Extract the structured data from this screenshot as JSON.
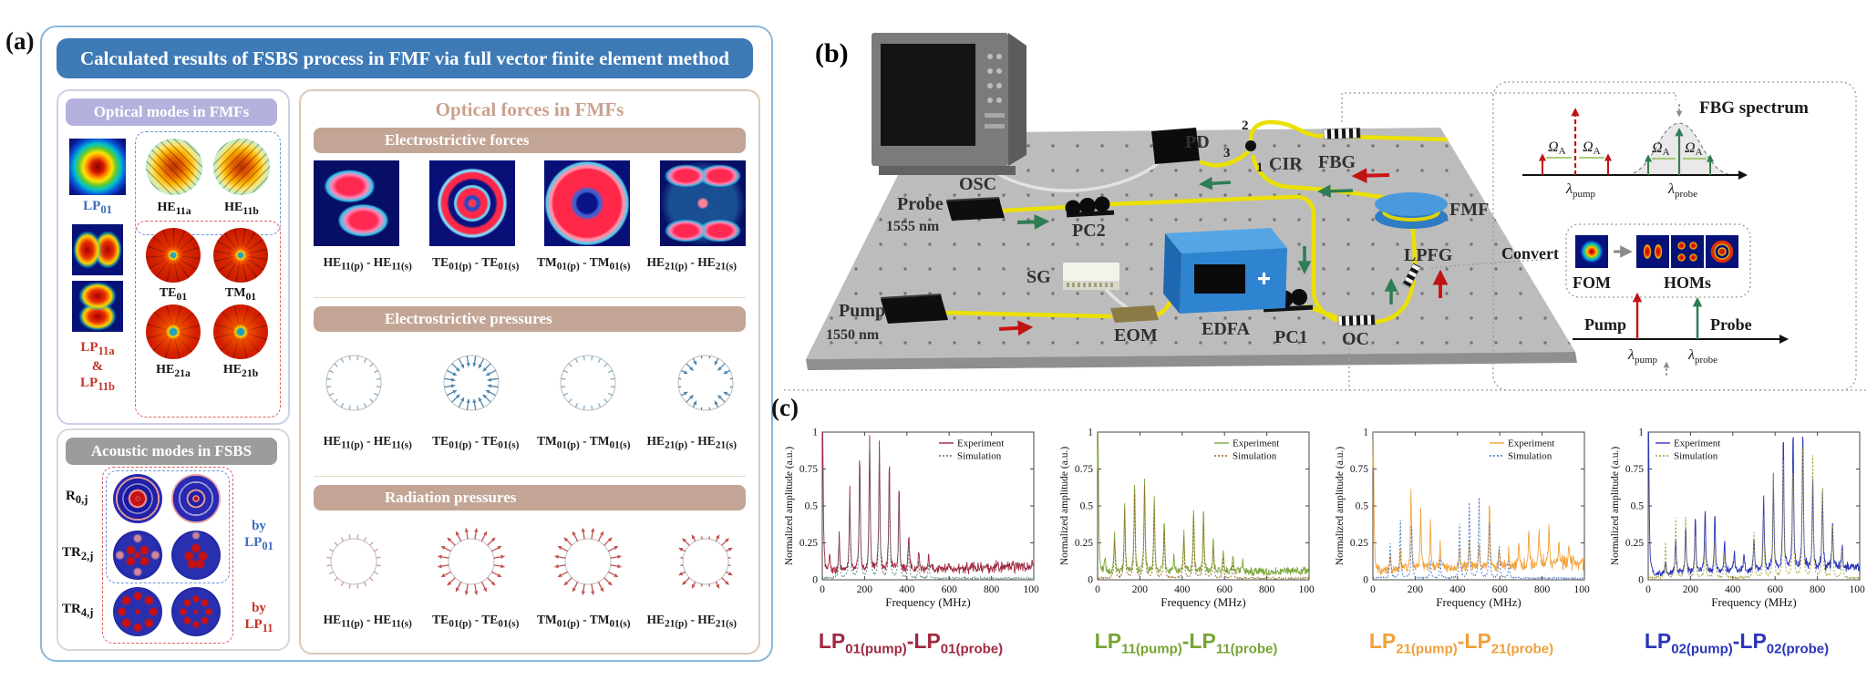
{
  "panels": {
    "a_label": "(a)",
    "b_label": "(b)",
    "c_label": "(c)"
  },
  "panel_a": {
    "title": "Calculated results of FSBS process in FMF via full vector finite element method",
    "optical_modes": {
      "header": "Optical modes in FMFs",
      "labels": {
        "lp01": "LP<sub>01</sub>",
        "he11a": "HE<sub>11a</sub>",
        "he11b": "HE<sub>11b</sub>",
        "lp11": "LP<sub>11a</sub><br>&amp;<br>LP<sub>11b</sub>",
        "te01": "TE<sub>01</sub>",
        "tm01": "TM<sub>01</sub>",
        "he21a": "HE<sub>21a</sub>",
        "he21b": "HE<sub>21b</sub>"
      }
    },
    "acoustic": {
      "header": "Acoustic modes in FSBS",
      "rows": [
        "R<sub>0,j</sub>",
        "TR<sub>2,j</sub>",
        "TR<sub>4,j</sub>"
      ],
      "by_lp01": "by<br>LP<sub>01</sub>",
      "by_lp11": "by<br>LP<sub>11</sub>"
    },
    "forces": {
      "header": "Optical forces in FMFs",
      "sections": [
        "Electrostrictive forces",
        "Electrostrictive pressures",
        "Radiation pressures"
      ]
    },
    "pair_labels": [
      "HE<sub>11(p)</sub> - HE<sub>11(s)</sub>",
      "TE<sub>01(p)</sub> - TE<sub>01(s)</sub>",
      "TM<sub>01(p)</sub> - TM<sub>01(s)</sub>",
      "HE<sub>21(p)</sub> - HE<sub>21(s)</sub>"
    ],
    "rings": {
      "es": [
        {
          "color": "#85aec6",
          "dir": "in",
          "len": 5,
          "r": 30,
          "heads": false
        },
        {
          "color": "#4f87ad",
          "dir": "in",
          "len": 12,
          "r": 30,
          "heads": true
        },
        {
          "color": "#85aec6",
          "dir": "in",
          "len": 5,
          "r": 30,
          "heads": false
        },
        {
          "color": "#4f87ad",
          "dir": "in",
          "len": 11,
          "r": 30,
          "heads": true,
          "profile": "quad"
        }
      ],
      "rad": [
        {
          "color": "#d49a94",
          "dir": "out",
          "len": 5,
          "r": 25,
          "heads": false
        },
        {
          "color": "#c0504d",
          "dir": "out",
          "len": 12,
          "r": 25,
          "heads": true
        },
        {
          "color": "#c0504d",
          "dir": "out",
          "len": 12,
          "r": 25,
          "heads": true
        },
        {
          "color": "#c0504d",
          "dir": "out",
          "len": 11,
          "r": 25,
          "heads": true,
          "profile": "quad"
        }
      ]
    }
  },
  "panel_b": {
    "labels": {
      "osc": "OSC",
      "pd": "PD",
      "cir": "CIR",
      "fbg": "FBG",
      "fmf": "FMF",
      "probe": "Probe",
      "probe_wl": "1555 nm",
      "pc2": "PC2",
      "sg": "SG",
      "eom": "EOM",
      "edfa": "EDFA",
      "pump": "Pump",
      "pump_wl": "1550 nm",
      "pc1": "PC1",
      "oc": "OC",
      "lpfg": "LPFG",
      "p1": "1",
      "p2": "2",
      "p3": "3",
      "fbg_spectrum": "FBG spectrum",
      "convert": "Convert",
      "fom": "FOM",
      "homs": "HOMs",
      "pump2": "Pump",
      "probe2": "Probe"
    },
    "symbols": {
      "lambda": "λ",
      "omega": "Ω",
      "sub_A": "A",
      "pump": "pump",
      "probe": "probe"
    }
  },
  "chart_data": [
    {
      "type": "line",
      "seed": 3,
      "title": "LP<sub>01(pump)</sub>-LP<sub>01(probe)</sub>",
      "title_color": "#a02940",
      "xlabel": "Frequency (MHz)",
      "ylabel": "Normalized amplitude (a.u.)",
      "xlim": [
        0,
        1000
      ],
      "ylim": [
        0,
        1
      ],
      "xticks": [
        0,
        200,
        400,
        600,
        800,
        1000
      ],
      "yticks": [
        0,
        0.25,
        0.5,
        0.75,
        1
      ],
      "legend": "tr",
      "series": [
        {
          "name": "Experiment",
          "color": "#a02940",
          "style": "solid",
          "noise_base": 0.05,
          "noise_rise": 0.05,
          "peaks": [
            [
              2,
              1.0
            ],
            [
              35,
              0.13
            ],
            [
              80,
              0.26
            ],
            [
              130,
              0.56
            ],
            [
              177,
              0.81
            ],
            [
              224,
              0.92
            ],
            [
              270,
              0.87
            ],
            [
              317,
              0.76
            ],
            [
              363,
              0.58
            ],
            [
              409,
              0.26
            ],
            [
              456,
              0.12
            ],
            [
              503,
              0.11
            ]
          ]
        },
        {
          "name": "Simulation",
          "color": "#4a7878",
          "style": "dotted",
          "noise_base": 0.012,
          "noise_rise": 0,
          "peaks": [
            [
              80,
              0.25
            ],
            [
              130,
              0.55
            ],
            [
              177,
              0.8
            ],
            [
              224,
              0.9
            ],
            [
              270,
              0.85
            ],
            [
              317,
              0.74
            ],
            [
              363,
              0.56
            ],
            [
              409,
              0.25
            ],
            [
              456,
              0.11
            ],
            [
              503,
              0.1
            ]
          ]
        }
      ]
    },
    {
      "type": "line",
      "seed": 5,
      "title": "LP<sub>11(pump)</sub>-LP<sub>11(probe)</sub>",
      "title_color": "#76a432",
      "xlabel": "Frequency (MHz)",
      "ylabel": "Normalized amplitude (a.u.)",
      "xlim": [
        0,
        1000
      ],
      "ylim": [
        0,
        1
      ],
      "xticks": [
        0,
        200,
        400,
        600,
        800,
        1000
      ],
      "yticks": [
        0,
        0.25,
        0.5,
        0.75,
        1
      ],
      "legend": "tr",
      "series": [
        {
          "name": "Experiment",
          "color": "#7da83e",
          "style": "solid",
          "noise_base": 0.05,
          "noise_rise": 0.015,
          "peaks": [
            [
              2,
              1.0
            ],
            [
              35,
              0.1
            ],
            [
              80,
              0.27
            ],
            [
              128,
              0.48
            ],
            [
              175,
              0.63
            ],
            [
              222,
              0.63
            ],
            [
              268,
              0.51
            ],
            [
              315,
              0.35
            ],
            [
              361,
              0.12
            ],
            [
              408,
              0.29
            ],
            [
              454,
              0.44
            ],
            [
              501,
              0.43
            ],
            [
              547,
              0.23
            ],
            [
              594,
              0.16
            ],
            [
              640,
              0.11
            ],
            [
              687,
              0.08
            ]
          ]
        },
        {
          "name": "Simulation",
          "color": "#96651c",
          "style": "dotted",
          "noise_base": 0.012,
          "noise_rise": 0,
          "peaks": [
            [
              80,
              0.26
            ],
            [
              128,
              0.47
            ],
            [
              175,
              0.62
            ],
            [
              222,
              0.62
            ],
            [
              268,
              0.5
            ],
            [
              315,
              0.34
            ],
            [
              408,
              0.28
            ],
            [
              454,
              0.41
            ],
            [
              501,
              0.4
            ],
            [
              547,
              0.22
            ],
            [
              594,
              0.14
            ],
            [
              640,
              0.1
            ]
          ]
        }
      ]
    },
    {
      "type": "line",
      "seed": 9,
      "title": "LP<sub>21(pump)</sub>-LP<sub>21(probe)</sub>",
      "title_color": "#f0a03a",
      "xlabel": "Frequency (MHz)",
      "ylabel": "Normalized amplitude (a.u.)",
      "xlim": [
        0,
        1000
      ],
      "ylim": [
        0,
        1
      ],
      "xticks": [
        0,
        200,
        400,
        600,
        800,
        1000
      ],
      "yticks": [
        0,
        0.25,
        0.5,
        0.75,
        1
      ],
      "legend": "tr",
      "series": [
        {
          "name": "Experiment",
          "color": "#f2a33c",
          "style": "solid",
          "noise_base": 0.06,
          "noise_rise": 0.06,
          "peaks": [
            [
              2,
              1.0
            ],
            [
              82,
              0.1
            ],
            [
              130,
              0.13
            ],
            [
              180,
              0.54
            ],
            [
              226,
              0.41
            ],
            [
              272,
              0.31
            ],
            [
              318,
              0.16
            ],
            [
              410,
              0.13
            ],
            [
              456,
              0.16
            ],
            [
              502,
              0.13
            ],
            [
              551,
              0.46
            ],
            [
              597,
              0.13
            ],
            [
              643,
              0.11
            ],
            [
              690,
              0.14
            ],
            [
              738,
              0.23
            ],
            [
              786,
              0.26
            ],
            [
              833,
              0.26
            ],
            [
              880,
              0.16
            ],
            [
              928,
              0.11
            ]
          ]
        },
        {
          "name": "Simulation",
          "color": "#4472c8",
          "style": "dotted",
          "noise_base": 0.012,
          "noise_rise": 0,
          "peaks": [
            [
              82,
              0.23
            ],
            [
              130,
              0.39
            ],
            [
              183,
              0.38
            ],
            [
              272,
              0.11
            ],
            [
              318,
              0.14
            ],
            [
              410,
              0.36
            ],
            [
              456,
              0.51
            ],
            [
              502,
              0.54
            ],
            [
              551,
              0.41
            ],
            [
              597,
              0.23
            ],
            [
              643,
              0.13
            ]
          ]
        }
      ]
    },
    {
      "type": "line",
      "seed": 11,
      "title": "LP<sub>02(pump)</sub>-LP<sub>02(probe)</sub>",
      "title_color": "#2a35b8",
      "xlabel": "Frequency (MHz)",
      "ylabel": "Normalized amplitude (a.u.)",
      "xlim": [
        0,
        1000
      ],
      "ylim": [
        0,
        1
      ],
      "xticks": [
        0,
        200,
        400,
        600,
        800,
        1000
      ],
      "yticks": [
        0,
        0.25,
        0.5,
        0.75,
        1
      ],
      "legend": "tl",
      "series": [
        {
          "name": "Experiment",
          "color": "#2a35b8",
          "style": "solid",
          "noise_base": 0.04,
          "noise_rise": 0.05,
          "peaks": [
            [
              2,
              0.99
            ],
            [
              82,
              0.09
            ],
            [
              130,
              0.23
            ],
            [
              177,
              0.33
            ],
            [
              223,
              0.38
            ],
            [
              269,
              0.45
            ],
            [
              315,
              0.39
            ],
            [
              361,
              0.21
            ],
            [
              407,
              0.13
            ],
            [
              453,
              0.13
            ],
            [
              500,
              0.23
            ],
            [
              546,
              0.52
            ],
            [
              592,
              0.64
            ],
            [
              639,
              0.94
            ],
            [
              685,
              1.0
            ],
            [
              731,
              0.97
            ],
            [
              778,
              0.59
            ],
            [
              824,
              0.51
            ],
            [
              871,
              0.31
            ],
            [
              917,
              0.14
            ]
          ]
        },
        {
          "name": "Simulation",
          "color": "#a39a28",
          "style": "dotted",
          "noise_base": 0.015,
          "noise_rise": 0,
          "peaks": [
            [
              82,
              0.24
            ],
            [
              130,
              0.41
            ],
            [
              177,
              0.45
            ],
            [
              223,
              0.31
            ],
            [
              269,
              0.26
            ],
            [
              315,
              0.26
            ],
            [
              361,
              0.16
            ],
            [
              500,
              0.31
            ],
            [
              546,
              0.41
            ],
            [
              592,
              0.71
            ],
            [
              639,
              0.86
            ],
            [
              685,
              0.76
            ],
            [
              731,
              0.97
            ],
            [
              778,
              0.82
            ],
            [
              824,
              0.61
            ],
            [
              871,
              0.39
            ],
            [
              917,
              0.2
            ]
          ]
        }
      ]
    }
  ]
}
